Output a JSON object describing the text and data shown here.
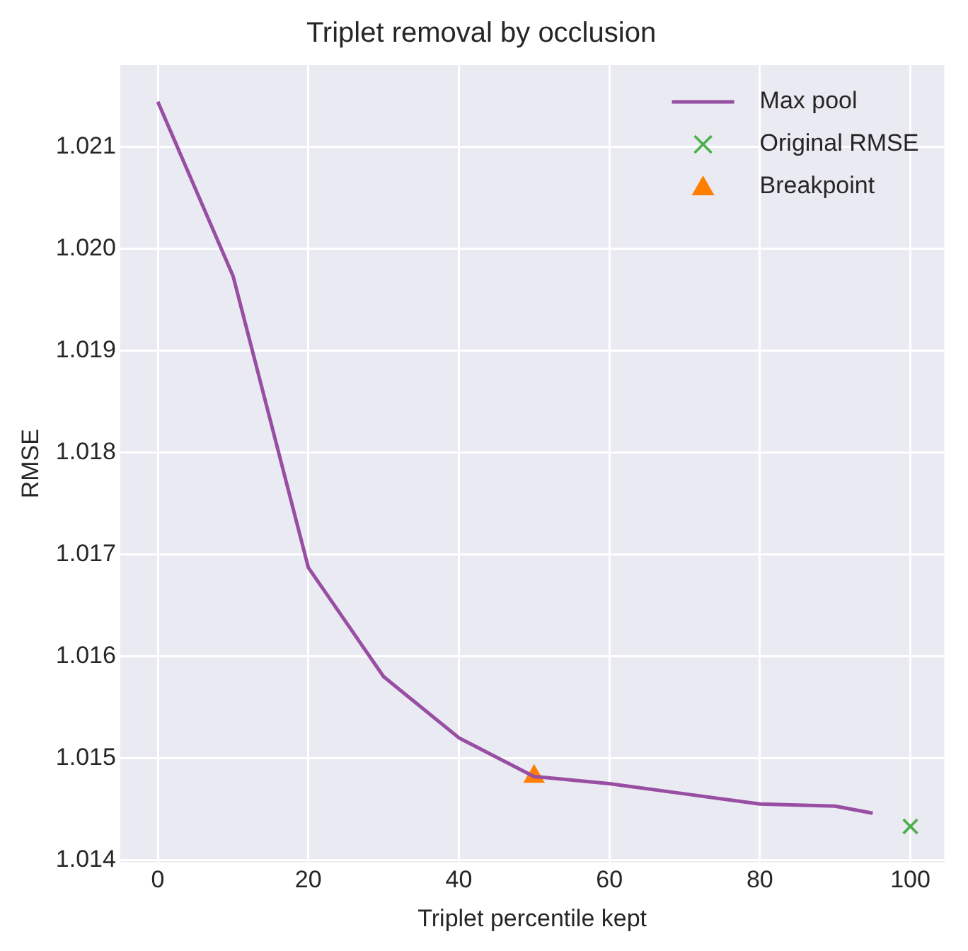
{
  "chart_data": {
    "type": "line",
    "title": "Triplet removal by occlusion",
    "xlabel": "Triplet percentile kept",
    "ylabel": "RMSE",
    "series": [
      {
        "name": "Max pool",
        "color": "#984ea3",
        "marker": "none",
        "x": [
          0,
          10,
          20,
          30,
          40,
          50,
          60,
          70,
          80,
          90,
          95
        ],
        "values": [
          1.02144,
          1.01973,
          1.01687,
          1.0158,
          1.0152,
          1.01482,
          1.01475,
          1.01465,
          1.01455,
          1.01453,
          1.01446
        ]
      },
      {
        "name": "Original RMSE",
        "type": "scatter",
        "color": "#4daf4a",
        "marker": "cross",
        "x": [
          100
        ],
        "values": [
          1.01433
        ]
      },
      {
        "name": "Breakpoint",
        "type": "scatter",
        "color": "#ff7f00",
        "marker": "triangle",
        "x": [
          50
        ],
        "values": [
          1.01482
        ]
      }
    ],
    "xlim": [
      -5,
      104.5
    ],
    "ylim": [
      1.01398,
      1.0218
    ],
    "xticks": [
      0,
      20,
      40,
      60,
      80,
      100
    ],
    "yticks": [
      1.014,
      1.015,
      1.016,
      1.017,
      1.018,
      1.019,
      {
        "value": 1.02,
        "label": "1.020"
      },
      1.021
    ],
    "grid": true,
    "legend": "top right"
  }
}
